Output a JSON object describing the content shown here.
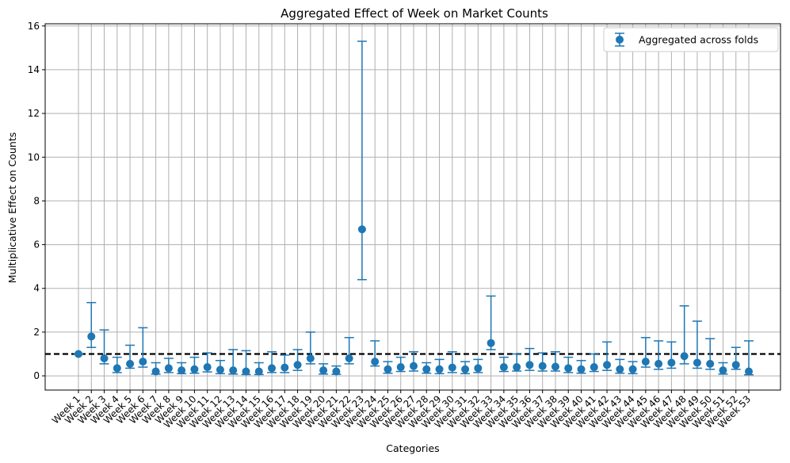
{
  "chart_data": {
    "type": "scatter",
    "title": "Aggregated Effect of Week on Market Counts",
    "xlabel": "Categories",
    "ylabel": "Multiplicative Effect on Counts",
    "ylim": [
      -0.65,
      16.1
    ],
    "yticks": [
      0,
      2,
      4,
      6,
      8,
      10,
      12,
      14,
      16
    ],
    "grid": true,
    "legend_position": "top-right",
    "reference_line": 1.0,
    "colors": {
      "series": "#1f77b4",
      "reference": "#000000",
      "grid": "#b0b0b0"
    },
    "categories": [
      "Week 1",
      "Week 2",
      "Week 3",
      "Week 4",
      "Week 5",
      "Week 6",
      "Week 7",
      "Week 8",
      "Week 9",
      "Week 10",
      "Week 11",
      "Week 12",
      "Week 13",
      "Week 14",
      "Week 15",
      "Week 16",
      "Week 17",
      "Week 18",
      "Week 19",
      "Week 20",
      "Week 21",
      "Week 22",
      "Week 23",
      "Week 24",
      "Week 25",
      "Week 26",
      "Week 27",
      "Week 28",
      "Week 29",
      "Week 30",
      "Week 31",
      "Week 32",
      "Week 33",
      "Week 34",
      "Week 35",
      "Week 36",
      "Week 37",
      "Week 38",
      "Week 39",
      "Week 40",
      "Week 41",
      "Week 42",
      "Week 43",
      "Week 44",
      "Week 45",
      "Week 46",
      "Week 47",
      "Week 48",
      "Week 49",
      "Week 50",
      "Week 51",
      "Week 52",
      "Week 53"
    ],
    "series": [
      {
        "name": "Aggregated across folds",
        "values": [
          1.0,
          1.8,
          0.8,
          0.35,
          0.55,
          0.65,
          0.2,
          0.35,
          0.25,
          0.3,
          0.4,
          0.28,
          0.25,
          0.2,
          0.2,
          0.35,
          0.38,
          0.5,
          0.8,
          0.25,
          0.2,
          0.8,
          6.7,
          0.65,
          0.3,
          0.4,
          0.45,
          0.3,
          0.3,
          0.38,
          0.3,
          0.35,
          1.5,
          0.4,
          0.4,
          0.5,
          0.45,
          0.42,
          0.35,
          0.3,
          0.4,
          0.5,
          0.3,
          0.3,
          0.65,
          0.55,
          0.6,
          0.9,
          0.6,
          0.55,
          0.25,
          0.5,
          0.2
        ],
        "lower": [
          1.0,
          1.3,
          0.55,
          0.15,
          0.35,
          0.4,
          0.08,
          0.15,
          0.1,
          0.12,
          0.18,
          0.1,
          0.08,
          0.06,
          0.06,
          0.15,
          0.15,
          0.25,
          0.55,
          0.08,
          0.07,
          0.55,
          4.4,
          0.45,
          0.12,
          0.2,
          0.22,
          0.12,
          0.1,
          0.15,
          0.1,
          0.15,
          1.2,
          0.2,
          0.22,
          0.25,
          0.22,
          0.22,
          0.15,
          0.12,
          0.2,
          0.25,
          0.12,
          0.1,
          0.4,
          0.3,
          0.35,
          0.55,
          0.35,
          0.3,
          0.08,
          0.3,
          0.05
        ],
        "upper": [
          1.0,
          3.35,
          2.1,
          0.85,
          1.4,
          2.2,
          0.6,
          0.8,
          0.6,
          0.85,
          1.05,
          0.7,
          1.2,
          1.15,
          0.6,
          1.1,
          0.95,
          1.2,
          2.0,
          0.55,
          0.45,
          1.75,
          15.3,
          1.6,
          0.65,
          0.85,
          1.1,
          0.6,
          0.75,
          1.1,
          0.65,
          0.75,
          3.65,
          0.85,
          1.0,
          1.25,
          1.05,
          1.1,
          0.85,
          0.7,
          1.0,
          1.55,
          0.75,
          0.65,
          1.75,
          1.6,
          1.55,
          3.2,
          2.5,
          1.7,
          0.6,
          1.3,
          1.6
        ]
      }
    ]
  }
}
